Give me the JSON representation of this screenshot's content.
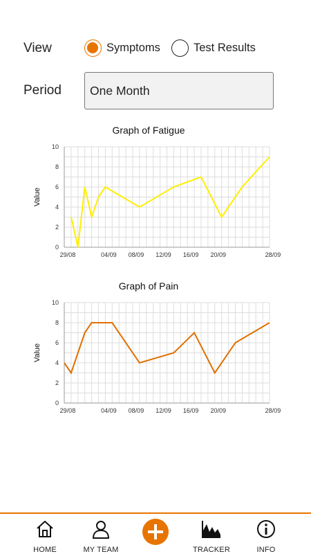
{
  "view": {
    "label": "View",
    "options": [
      {
        "label": "Symptoms",
        "selected": true
      },
      {
        "label": "Test Results",
        "selected": false
      }
    ]
  },
  "period": {
    "label": "Period",
    "value": "One Month"
  },
  "accent_color": "#e87400",
  "chart_data": [
    {
      "type": "line",
      "title": "Graph of Fatigue",
      "xlabel": "",
      "ylabel": "Value",
      "ylim": [
        0,
        10
      ],
      "yticks": [
        "0",
        "2",
        "4",
        "6",
        "8",
        "10"
      ],
      "xticks": [
        "29/08",
        "04/09",
        "08/09",
        "12/09",
        "16/09",
        "20/09",
        "28/09"
      ],
      "grid": true,
      "color": "#ffee00",
      "series": [
        {
          "x": [
            0,
            1,
            2,
            3,
            4,
            5,
            10,
            15,
            19,
            22,
            25,
            29
          ],
          "values": [
            3,
            0,
            6,
            3,
            5,
            6,
            4,
            6,
            7,
            3,
            6,
            9
          ]
        }
      ]
    },
    {
      "type": "line",
      "title": "Graph of Pain",
      "xlabel": "",
      "ylabel": "Value",
      "ylim": [
        0,
        10
      ],
      "yticks": [
        "0",
        "2",
        "4",
        "6",
        "8",
        "10"
      ],
      "xticks": [
        "29/08",
        "04/09",
        "08/09",
        "12/09",
        "16/09",
        "20/09",
        "28/09"
      ],
      "grid": true,
      "color": "#e07000",
      "series": [
        {
          "x": [
            -1,
            0,
            2,
            3,
            6,
            10,
            15,
            18,
            21,
            24,
            29
          ],
          "values": [
            4,
            3,
            7,
            8,
            8,
            4,
            5,
            7,
            3,
            6,
            8
          ]
        }
      ]
    }
  ],
  "nav": {
    "items": [
      {
        "label": "HOME",
        "icon": "home-icon"
      },
      {
        "label": "MY TEAM",
        "icon": "person-icon"
      },
      {
        "label": "",
        "icon": "add-icon"
      },
      {
        "label": "TRACKER",
        "icon": "chart-icon"
      },
      {
        "label": "INFO",
        "icon": "info-icon"
      }
    ]
  }
}
